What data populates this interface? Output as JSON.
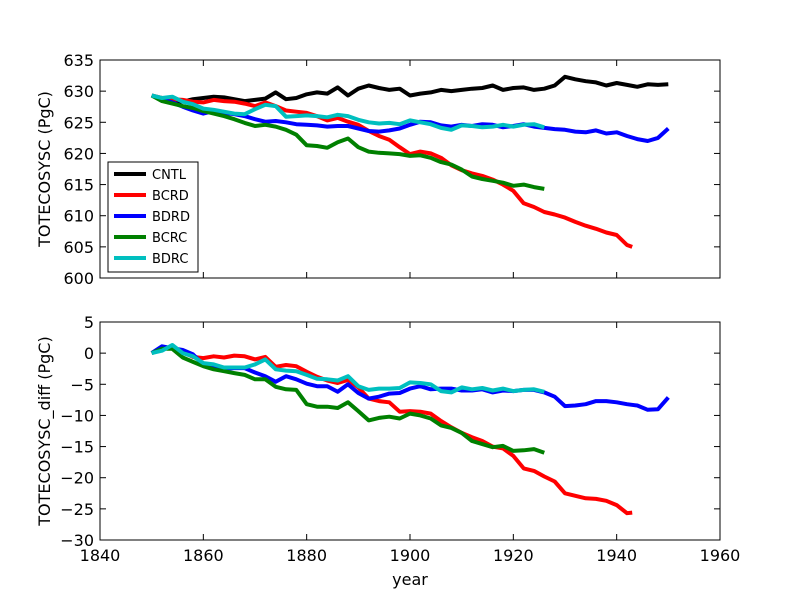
{
  "chart_data": [
    {
      "type": "line",
      "xlabel": "",
      "ylabel": "TOTECOSYSC (PgC)",
      "xlim": [
        1840,
        1960
      ],
      "ylim": [
        600,
        635
      ],
      "xticks": [
        1840,
        1860,
        1880,
        1900,
        1920,
        1940,
        1960
      ],
      "yticks": [
        600,
        605,
        610,
        615,
        620,
        625,
        630,
        635
      ],
      "show_xtick_labels": false,
      "grid": false,
      "legend": "lower-left",
      "series": [
        {
          "name": "CNTL",
          "color": "#000000",
          "x": [
            1850,
            1852,
            1854,
            1856,
            1858,
            1860,
            1862,
            1864,
            1866,
            1868,
            1870,
            1872,
            1874,
            1876,
            1878,
            1880,
            1882,
            1884,
            1886,
            1888,
            1890,
            1892,
            1894,
            1896,
            1898,
            1900,
            1902,
            1904,
            1906,
            1908,
            1910,
            1912,
            1914,
            1916,
            1918,
            1920,
            1922,
            1924,
            1926,
            1928,
            1930,
            1932,
            1934,
            1936,
            1938,
            1940,
            1942,
            1944,
            1946,
            1948,
            1950
          ],
          "y": [
            629.3,
            628.6,
            628.1,
            628.3,
            628.7,
            628.9,
            629.1,
            629.0,
            628.7,
            628.4,
            628.6,
            628.8,
            629.8,
            628.7,
            628.9,
            629.5,
            629.8,
            629.6,
            630.6,
            629.3,
            630.4,
            630.9,
            630.5,
            630.2,
            630.4,
            629.3,
            629.6,
            629.8,
            630.2,
            630.0,
            630.2,
            630.4,
            630.5,
            630.9,
            630.2,
            630.5,
            630.6,
            630.2,
            630.4,
            630.9,
            632.3,
            631.9,
            631.6,
            631.4,
            630.9,
            631.3,
            631.0,
            630.7,
            631.1,
            631.0,
            631.1
          ]
        },
        {
          "name": "BCRD",
          "color": "#ff0000",
          "x": [
            1850,
            1852,
            1854,
            1856,
            1858,
            1860,
            1862,
            1864,
            1866,
            1868,
            1870,
            1872,
            1874,
            1876,
            1878,
            1880,
            1882,
            1884,
            1886,
            1888,
            1890,
            1892,
            1894,
            1896,
            1898,
            1900,
            1902,
            1904,
            1906,
            1908,
            1910,
            1912,
            1914,
            1916,
            1918,
            1920,
            1922,
            1924,
            1926,
            1928,
            1930,
            1932,
            1934,
            1936,
            1938,
            1940,
            1942,
            1943
          ],
          "y": [
            629.3,
            628.9,
            628.7,
            628.6,
            628.3,
            628.2,
            628.6,
            628.4,
            628.3,
            628.0,
            627.6,
            628.2,
            627.6,
            626.9,
            626.7,
            626.5,
            626.0,
            625.3,
            625.7,
            625.1,
            624.6,
            623.6,
            622.8,
            622.2,
            621.0,
            619.9,
            620.3,
            620.0,
            619.3,
            618.1,
            617.3,
            616.8,
            616.4,
            615.8,
            615.0,
            614.0,
            612.0,
            611.4,
            610.6,
            610.2,
            609.7,
            609.0,
            608.4,
            607.9,
            607.3,
            606.9,
            605.3,
            605.0
          ]
        },
        {
          "name": "BDRD",
          "color": "#0000ff",
          "x": [
            1850,
            1852,
            1854,
            1856,
            1858,
            1860,
            1862,
            1864,
            1866,
            1868,
            1870,
            1872,
            1874,
            1876,
            1878,
            1880,
            1882,
            1884,
            1886,
            1888,
            1890,
            1892,
            1894,
            1896,
            1898,
            1900,
            1902,
            1904,
            1906,
            1908,
            1910,
            1912,
            1914,
            1916,
            1918,
            1920,
            1922,
            1924,
            1926,
            1928,
            1930,
            1932,
            1934,
            1936,
            1938,
            1940,
            1942,
            1944,
            1946,
            1948,
            1950
          ],
          "y": [
            629.3,
            628.7,
            628.2,
            627.5,
            626.9,
            626.4,
            626.8,
            626.5,
            626.3,
            626.0,
            625.5,
            625.1,
            625.2,
            625.0,
            624.7,
            624.6,
            624.5,
            624.3,
            624.4,
            624.4,
            624.0,
            623.6,
            623.5,
            623.7,
            624.0,
            624.6,
            625.1,
            625.0,
            624.5,
            624.3,
            624.6,
            624.4,
            624.7,
            624.6,
            624.2,
            624.4,
            624.7,
            624.3,
            624.1,
            623.9,
            623.8,
            623.5,
            623.4,
            623.7,
            623.2,
            623.4,
            622.8,
            622.3,
            622.0,
            622.5,
            624.0
          ]
        },
        {
          "name": "BCRC",
          "color": "#008000",
          "x": [
            1850,
            1852,
            1854,
            1856,
            1858,
            1860,
            1862,
            1864,
            1866,
            1868,
            1870,
            1872,
            1874,
            1876,
            1878,
            1880,
            1882,
            1884,
            1886,
            1888,
            1890,
            1892,
            1894,
            1896,
            1898,
            1900,
            1902,
            1904,
            1906,
            1908,
            1910,
            1912,
            1914,
            1916,
            1918,
            1920,
            1922,
            1924,
            1926
          ],
          "y": [
            629.3,
            628.4,
            628.0,
            627.6,
            627.3,
            626.8,
            626.4,
            626.0,
            625.5,
            624.9,
            624.4,
            624.6,
            624.3,
            623.8,
            623.0,
            621.3,
            621.2,
            620.9,
            621.8,
            622.4,
            621.0,
            620.3,
            620.1,
            620.0,
            619.9,
            619.6,
            619.7,
            619.3,
            618.6,
            618.2,
            617.4,
            616.3,
            615.9,
            615.6,
            615.3,
            614.8,
            615.0,
            614.6,
            614.3
          ]
        },
        {
          "name": "BDRC",
          "color": "#00bfbf",
          "x": [
            1850,
            1852,
            1854,
            1856,
            1858,
            1860,
            1862,
            1864,
            1866,
            1868,
            1870,
            1872,
            1874,
            1876,
            1878,
            1880,
            1882,
            1884,
            1886,
            1888,
            1890,
            1892,
            1894,
            1896,
            1898,
            1900,
            1902,
            1904,
            1906,
            1908,
            1910,
            1912,
            1914,
            1916,
            1918,
            1920,
            1922,
            1924,
            1926
          ],
          "y": [
            629.3,
            628.9,
            629.1,
            628.3,
            627.9,
            627.2,
            627.0,
            626.7,
            626.4,
            626.3,
            627.1,
            627.8,
            627.6,
            625.9,
            626.0,
            626.1,
            626.0,
            625.8,
            626.2,
            626.0,
            625.4,
            625.0,
            624.8,
            624.9,
            624.7,
            625.3,
            625.0,
            624.7,
            624.1,
            623.8,
            624.5,
            624.4,
            624.2,
            624.3,
            624.6,
            624.3,
            624.6,
            624.7,
            624.2
          ]
        }
      ]
    },
    {
      "type": "line",
      "xlabel": "year",
      "ylabel": "TOTECOSYSC_diff (PgC)",
      "xlim": [
        1840,
        1960
      ],
      "ylim": [
        -30,
        5
      ],
      "xticks": [
        1840,
        1860,
        1880,
        1900,
        1920,
        1940,
        1960
      ],
      "yticks": [
        -30,
        -25,
        -20,
        -15,
        -10,
        -5,
        0,
        5
      ],
      "show_xtick_labels": true,
      "grid": false,
      "legend": "none",
      "series": [
        {
          "name": "BCRD",
          "color": "#ff0000",
          "x": [
            1850,
            1852,
            1854,
            1856,
            1858,
            1860,
            1862,
            1864,
            1866,
            1868,
            1870,
            1872,
            1874,
            1876,
            1878,
            1880,
            1882,
            1884,
            1886,
            1888,
            1890,
            1892,
            1894,
            1896,
            1898,
            1900,
            1902,
            1904,
            1906,
            1908,
            1910,
            1912,
            1914,
            1916,
            1918,
            1920,
            1922,
            1924,
            1926,
            1928,
            1930,
            1932,
            1934,
            1936,
            1938,
            1940,
            1942,
            1943
          ],
          "y": [
            0,
            0.8,
            0.9,
            0.2,
            -0.6,
            -0.8,
            -0.5,
            -0.7,
            -0.4,
            -0.5,
            -1.0,
            -0.6,
            -2.2,
            -1.9,
            -2.1,
            -3.0,
            -3.8,
            -4.4,
            -4.8,
            -4.3,
            -5.5,
            -7.3,
            -7.7,
            -7.9,
            -9.4,
            -9.3,
            -9.4,
            -9.7,
            -10.9,
            -11.9,
            -12.8,
            -13.5,
            -14.1,
            -15.0,
            -15.3,
            -16.5,
            -18.5,
            -18.9,
            -19.8,
            -20.6,
            -22.5,
            -22.9,
            -23.3,
            -23.4,
            -23.7,
            -24.4,
            -25.7,
            -25.6
          ]
        },
        {
          "name": "BDRD",
          "color": "#0000ff",
          "x": [
            1850,
            1852,
            1854,
            1856,
            1858,
            1860,
            1862,
            1864,
            1866,
            1868,
            1870,
            1872,
            1874,
            1876,
            1878,
            1880,
            1882,
            1884,
            1886,
            1888,
            1890,
            1892,
            1894,
            1896,
            1898,
            1900,
            1902,
            1904,
            1906,
            1908,
            1910,
            1912,
            1914,
            1916,
            1918,
            1920,
            1922,
            1924,
            1926,
            1928,
            1930,
            1932,
            1934,
            1936,
            1938,
            1940,
            1942,
            1944,
            1946,
            1948,
            1950
          ],
          "y": [
            0,
            1.1,
            0.8,
            0.5,
            -0.2,
            -1.8,
            -2.1,
            -2.5,
            -2.4,
            -2.4,
            -3.1,
            -3.7,
            -4.6,
            -3.7,
            -4.2,
            -4.9,
            -5.3,
            -5.3,
            -6.2,
            -5.0,
            -6.4,
            -7.3,
            -7.0,
            -6.5,
            -6.4,
            -5.7,
            -5.3,
            -5.8,
            -5.7,
            -5.7,
            -6.0,
            -6.0,
            -5.8,
            -6.3,
            -6.0,
            -6.1,
            -5.9,
            -5.9,
            -6.3,
            -7.0,
            -8.5,
            -8.4,
            -8.2,
            -7.7,
            -7.7,
            -7.9,
            -8.2,
            -8.4,
            -9.1,
            -9.0,
            -7.1
          ]
        },
        {
          "name": "BCRC",
          "color": "#008000",
          "x": [
            1850,
            1852,
            1854,
            1856,
            1858,
            1860,
            1862,
            1864,
            1866,
            1868,
            1870,
            1872,
            1874,
            1876,
            1878,
            1880,
            1882,
            1884,
            1886,
            1888,
            1890,
            1892,
            1894,
            1896,
            1898,
            1900,
            1902,
            1904,
            1906,
            1908,
            1910,
            1912,
            1914,
            1916,
            1918,
            1920,
            1922,
            1924,
            1926
          ],
          "y": [
            0,
            0.7,
            0.7,
            -0.7,
            -1.4,
            -2.1,
            -2.6,
            -2.9,
            -3.2,
            -3.5,
            -4.2,
            -4.2,
            -5.4,
            -5.8,
            -5.9,
            -8.2,
            -8.6,
            -8.6,
            -8.8,
            -7.9,
            -9.3,
            -10.8,
            -10.4,
            -10.2,
            -10.5,
            -9.7,
            -10.0,
            -10.5,
            -11.6,
            -12.0,
            -12.8,
            -14.1,
            -14.6,
            -15.1,
            -14.9,
            -15.7,
            -15.6,
            -15.4,
            -16.0
          ]
        },
        {
          "name": "BDRC",
          "color": "#00bfbf",
          "x": [
            1850,
            1852,
            1854,
            1856,
            1858,
            1860,
            1862,
            1864,
            1866,
            1868,
            1870,
            1872,
            1874,
            1876,
            1878,
            1880,
            1882,
            1884,
            1886,
            1888,
            1890,
            1892,
            1894,
            1896,
            1898,
            1900,
            1902,
            1904,
            1906,
            1908,
            1910,
            1912,
            1914,
            1916,
            1918,
            1920,
            1922,
            1924,
            1926
          ],
          "y": [
            0,
            0.4,
            1.3,
            0.0,
            -0.5,
            -1.6,
            -1.8,
            -2.3,
            -2.3,
            -2.3,
            -1.8,
            -1.0,
            -2.6,
            -2.8,
            -2.9,
            -3.5,
            -4.1,
            -4.2,
            -4.4,
            -3.7,
            -5.3,
            -5.9,
            -5.7,
            -5.7,
            -5.6,
            -4.7,
            -4.8,
            -5.0,
            -6.1,
            -6.3,
            -5.5,
            -5.8,
            -5.6,
            -6.0,
            -5.7,
            -6.1,
            -5.9,
            -5.8,
            -6.2
          ]
        }
      ]
    }
  ]
}
